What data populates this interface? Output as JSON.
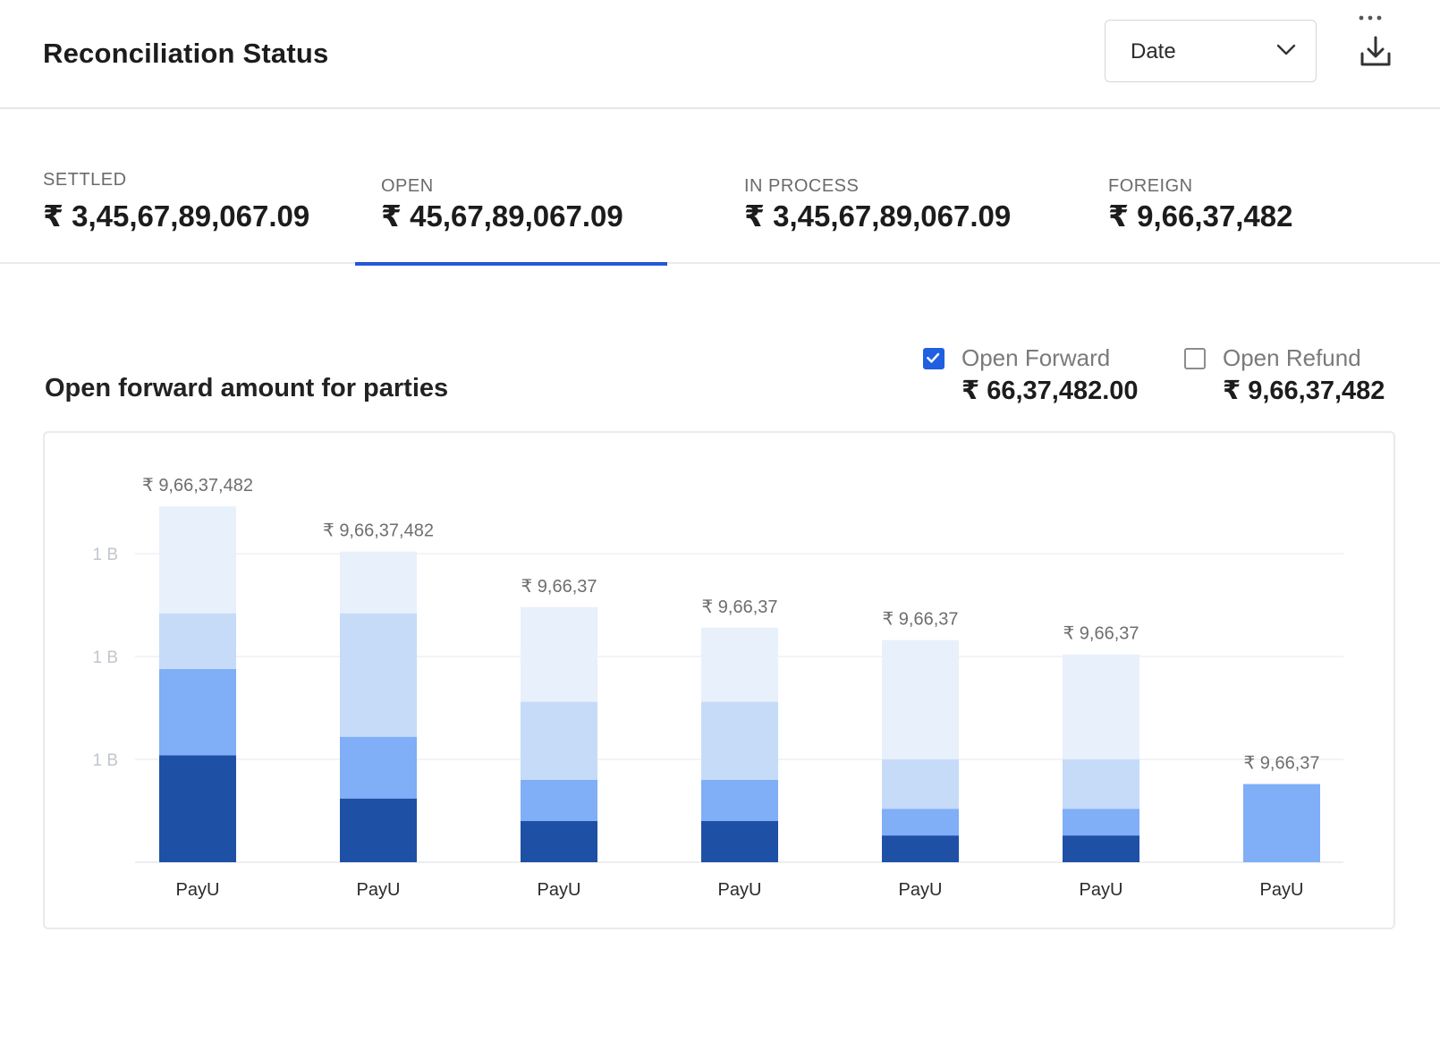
{
  "header": {
    "title": "Reconciliation Status",
    "date_select": {
      "value": "Date",
      "icon": "chevron-down-icon"
    },
    "more_icon": "more-horizontal-icon",
    "download_icon": "download-icon"
  },
  "tabs": [
    {
      "label": "SETTLED",
      "value": "₹ 3,45,67,89,067.09",
      "active": false
    },
    {
      "label": "OPEN",
      "value": "₹ 45,67,89,067.09",
      "active": true
    },
    {
      "label": "IN PROCESS",
      "value": "₹ 3,45,67,89,067.09",
      "active": false
    },
    {
      "label": "FOREIGN",
      "value": "₹ 9,66,37,482",
      "active": false
    }
  ],
  "section": {
    "title": "Open forward amount for parties",
    "legend": [
      {
        "label": "Open Forward",
        "value": "₹ 66,37,482.00",
        "checked": true
      },
      {
        "label": "Open Refund",
        "value": "₹ 9,66,37,482",
        "checked": false
      }
    ]
  },
  "colors": {
    "accent": "#2457d6",
    "seg_dark": "#1e50a6",
    "seg_mid": "#80aef7",
    "seg_light": "#c5dbf8",
    "seg_lightest": "#e8f0fc"
  },
  "chart_data": {
    "type": "bar",
    "stacked": true,
    "categories": [
      "PayU",
      "PayU",
      "PayU",
      "PayU",
      "PayU",
      "PayU",
      "PayU"
    ],
    "y_tick_labels": [
      "1 B",
      "1 B",
      "1 B"
    ],
    "data_labels": [
      "₹ 9,66,37,482",
      "₹ 9,66,37,482",
      "₹ 9,66,37",
      "₹ 9,66,37",
      "₹ 9,66,37",
      "₹ 9,66,37",
      "₹ 9,66,37"
    ],
    "ylim": [
      0,
      1.7
    ],
    "grid": true,
    "series": [
      {
        "values": [
          0.52,
          0.31,
          0.2,
          0.2,
          0.13,
          0.13,
          0
        ]
      },
      {
        "values": [
          0.42,
          0.3,
          0.2,
          0.2,
          0.13,
          0.13,
          0.38
        ]
      },
      {
        "values": [
          0.27,
          0.6,
          0.38,
          0.38,
          0.24,
          0.24,
          0
        ]
      },
      {
        "values": [
          0.52,
          0.3,
          0.46,
          0.36,
          0.58,
          0.51,
          0
        ]
      }
    ]
  }
}
